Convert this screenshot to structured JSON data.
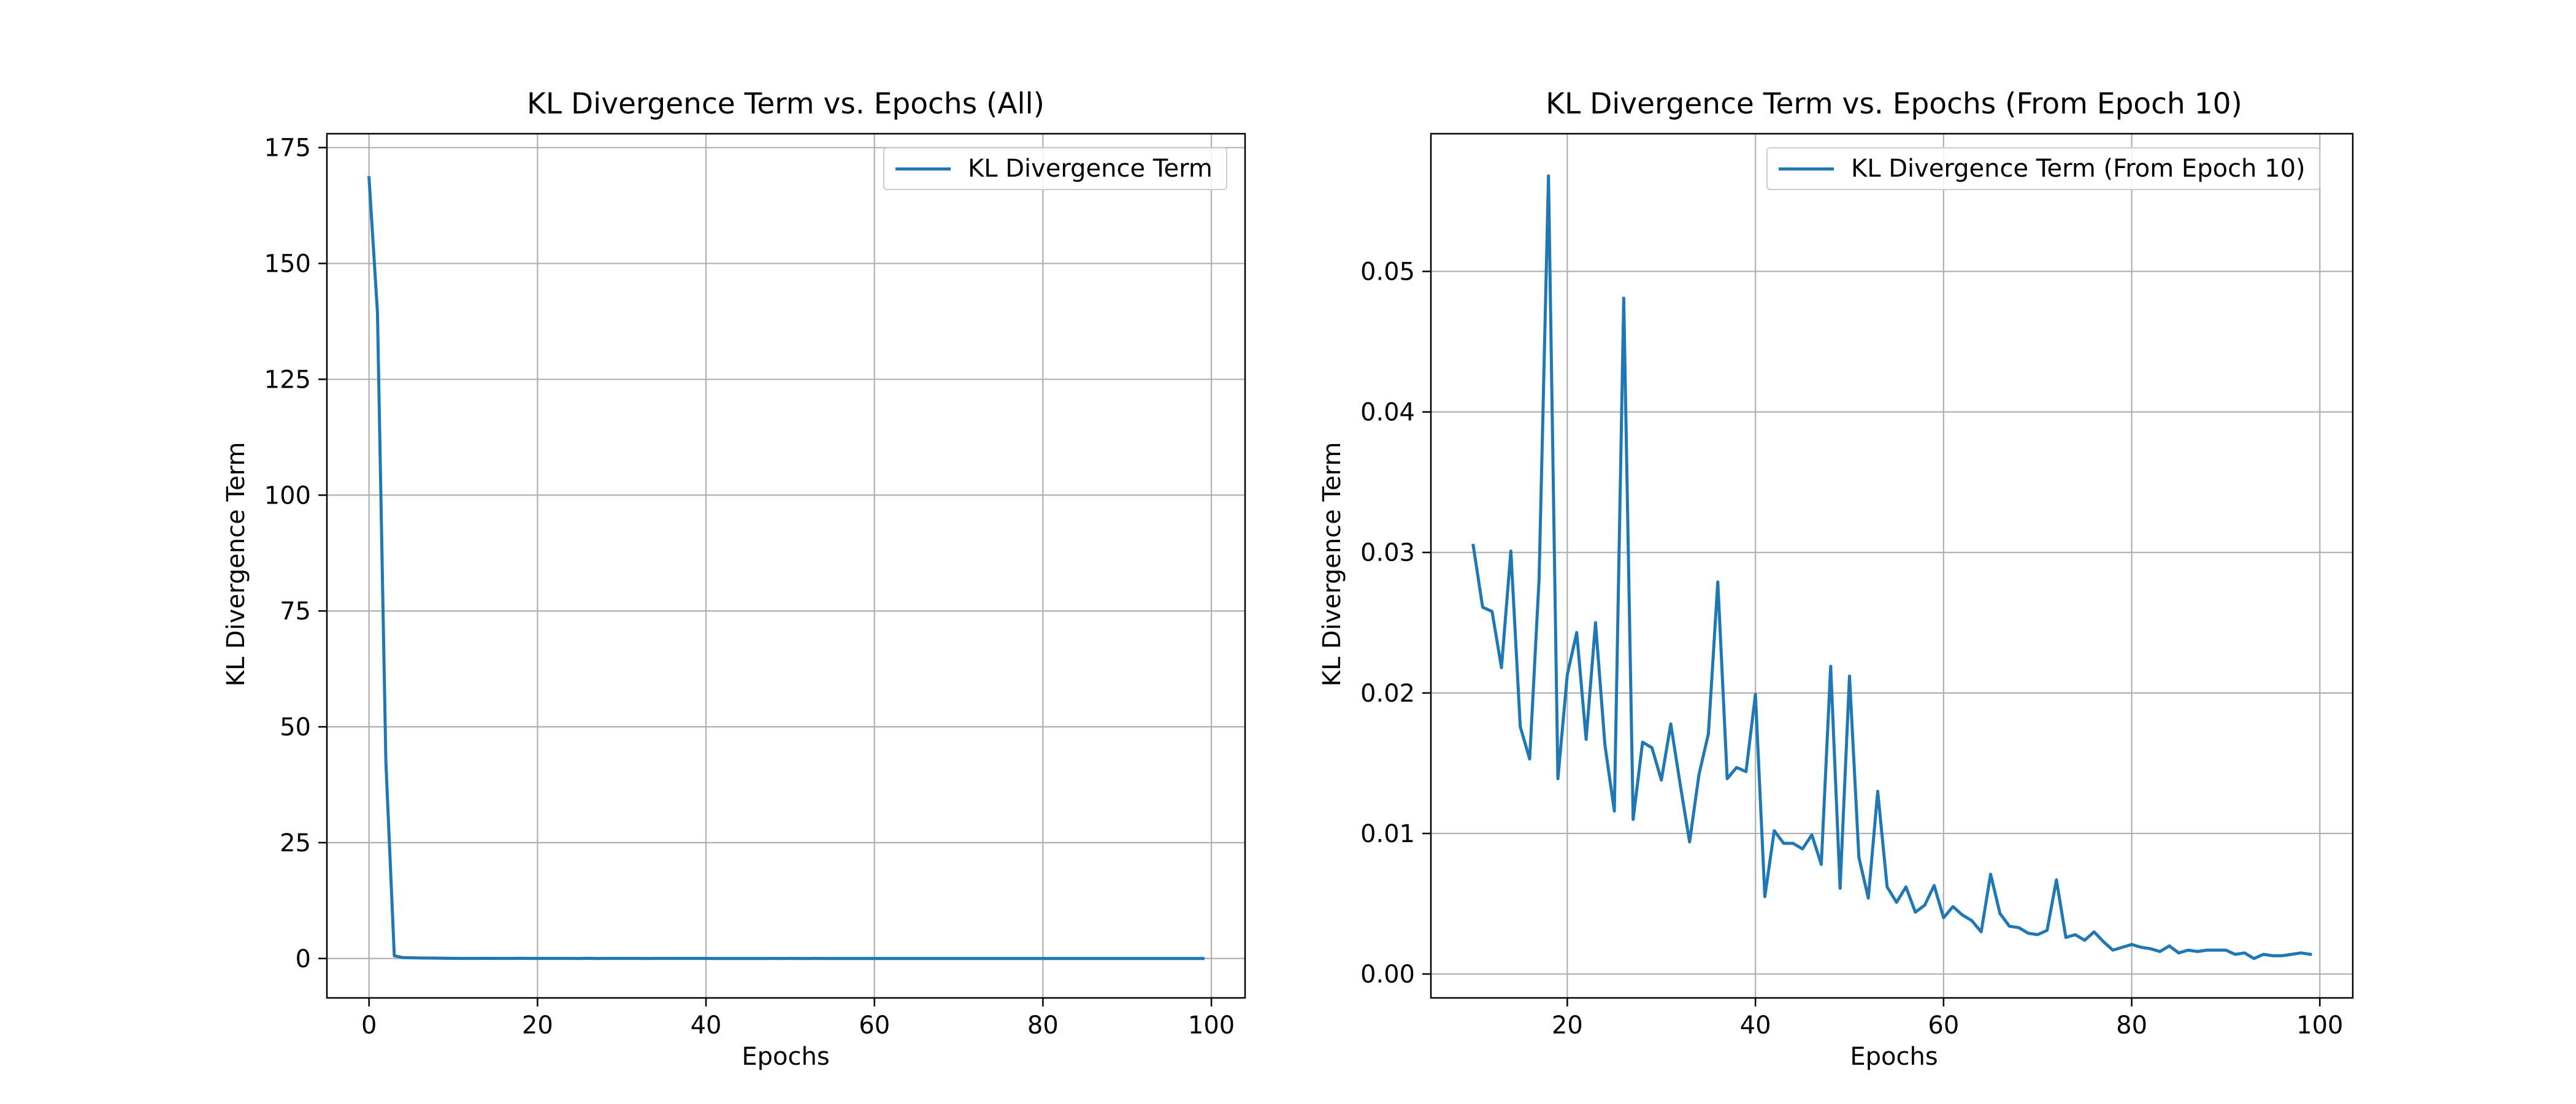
{
  "chart_data": [
    {
      "type": "line",
      "title": "KL Divergence Term vs. Epochs (All)",
      "xlabel": "Epochs",
      "ylabel": "KL Divergence Term",
      "xlim": [
        -5,
        104
      ],
      "ylim": [
        -8.5,
        178
      ],
      "xticks": [
        0,
        20,
        40,
        60,
        80,
        100
      ],
      "yticks": [
        0,
        25,
        50,
        75,
        100,
        125,
        150,
        175
      ],
      "xtick_labels": [
        "0",
        "20",
        "40",
        "60",
        "80",
        "100"
      ],
      "ytick_labels": [
        "0",
        "25",
        "50",
        "75",
        "100",
        "125",
        "150",
        "175"
      ],
      "grid": true,
      "legend_position": "top-right",
      "series": [
        {
          "name": "KL Divergence Term",
          "color": "#1f77b4",
          "x": [
            0,
            1,
            2,
            3,
            4,
            5,
            6,
            7,
            8,
            9,
            10,
            11,
            12,
            13,
            14,
            15,
            16,
            17,
            18,
            19,
            20,
            21,
            22,
            23,
            24,
            25,
            26,
            27,
            28,
            29,
            30,
            31,
            32,
            33,
            34,
            35,
            36,
            37,
            38,
            39,
            40,
            41,
            42,
            43,
            44,
            45,
            46,
            47,
            48,
            49,
            50,
            51,
            52,
            53,
            54,
            55,
            56,
            57,
            58,
            59,
            60,
            61,
            62,
            63,
            64,
            65,
            66,
            67,
            68,
            69,
            70,
            71,
            72,
            73,
            74,
            75,
            76,
            77,
            78,
            79,
            80,
            81,
            82,
            83,
            84,
            85,
            86,
            87,
            88,
            89,
            90,
            91,
            92,
            93,
            94,
            95,
            96,
            97,
            98,
            99
          ],
          "values": [
            168.5,
            139.5,
            42.5,
            0.6,
            0.2,
            0.15,
            0.12,
            0.1,
            0.08,
            0.06,
            0.0305,
            0.0261,
            0.0258,
            0.0218,
            0.0301,
            0.0176,
            0.0153,
            0.0281,
            0.0568,
            0.0139,
            0.0213,
            0.0243,
            0.0167,
            0.025,
            0.0163,
            0.0116,
            0.0481,
            0.011,
            0.0165,
            0.0161,
            0.0138,
            0.0178,
            0.0135,
            0.0094,
            0.0142,
            0.0171,
            0.0279,
            0.0139,
            0.0147,
            0.0144,
            0.0199,
            0.0055,
            0.0102,
            0.0093,
            0.0093,
            0.0089,
            0.0099,
            0.0078,
            0.0219,
            0.0061,
            0.0212,
            0.0083,
            0.0054,
            0.013,
            0.0062,
            0.0051,
            0.0062,
            0.0044,
            0.0049,
            0.0063,
            0.004,
            0.0048,
            0.0042,
            0.0038,
            0.003,
            0.0071,
            0.0043,
            0.0034,
            0.0033,
            0.0029,
            0.0028,
            0.0031,
            0.0067,
            0.0026,
            0.0028,
            0.0024,
            0.003,
            0.0023,
            0.0017,
            0.0019,
            0.0021,
            0.0019,
            0.0018,
            0.0016,
            0.002,
            0.0015,
            0.0017,
            0.0016,
            0.0017,
            0.0017,
            0.0017,
            0.0014,
            0.0015,
            0.0011,
            0.0014,
            0.0013,
            0.0013,
            0.0014,
            0.0015,
            0.0014
          ]
        }
      ]
    },
    {
      "type": "line",
      "title": "KL Divergence Term vs. Epochs (From Epoch 10)",
      "xlabel": "Epochs",
      "ylabel": "KL Divergence Term",
      "xlim": [
        5.5,
        103.5
      ],
      "ylim": [
        -0.0017,
        0.0598
      ],
      "xticks": [
        20,
        40,
        60,
        80,
        100
      ],
      "yticks": [
        0.0,
        0.01,
        0.02,
        0.03,
        0.04,
        0.05
      ],
      "xtick_labels": [
        "20",
        "40",
        "60",
        "80",
        "100"
      ],
      "ytick_labels": [
        "0.00",
        "0.01",
        "0.02",
        "0.03",
        "0.04",
        "0.05"
      ],
      "grid": true,
      "legend_position": "top-right",
      "series": [
        {
          "name": "KL Divergence Term (From Epoch 10)",
          "color": "#1f77b4",
          "x": [
            10,
            11,
            12,
            13,
            14,
            15,
            16,
            17,
            18,
            19,
            20,
            21,
            22,
            23,
            24,
            25,
            26,
            27,
            28,
            29,
            30,
            31,
            32,
            33,
            34,
            35,
            36,
            37,
            38,
            39,
            40,
            41,
            42,
            43,
            44,
            45,
            46,
            47,
            48,
            49,
            50,
            51,
            52,
            53,
            54,
            55,
            56,
            57,
            58,
            59,
            60,
            61,
            62,
            63,
            64,
            65,
            66,
            67,
            68,
            69,
            70,
            71,
            72,
            73,
            74,
            75,
            76,
            77,
            78,
            79,
            80,
            81,
            82,
            83,
            84,
            85,
            86,
            87,
            88,
            89,
            90,
            91,
            92,
            93,
            94,
            95,
            96,
            97,
            98,
            99
          ],
          "values": [
            0.0305,
            0.0261,
            0.0258,
            0.0218,
            0.0301,
            0.0176,
            0.0153,
            0.0281,
            0.0568,
            0.0139,
            0.0213,
            0.0243,
            0.0167,
            0.025,
            0.0163,
            0.0116,
            0.0481,
            0.011,
            0.0165,
            0.0161,
            0.0138,
            0.0178,
            0.0135,
            0.0094,
            0.0142,
            0.0171,
            0.0279,
            0.0139,
            0.0147,
            0.0144,
            0.0199,
            0.0055,
            0.0102,
            0.0093,
            0.0093,
            0.0089,
            0.0099,
            0.0078,
            0.0219,
            0.0061,
            0.0212,
            0.0083,
            0.0054,
            0.013,
            0.0062,
            0.0051,
            0.0062,
            0.0044,
            0.0049,
            0.0063,
            0.004,
            0.0048,
            0.0042,
            0.0038,
            0.003,
            0.0071,
            0.0043,
            0.0034,
            0.0033,
            0.0029,
            0.0028,
            0.0031,
            0.0067,
            0.0026,
            0.0028,
            0.0024,
            0.003,
            0.0023,
            0.0017,
            0.0019,
            0.0021,
            0.0019,
            0.0018,
            0.0016,
            0.002,
            0.0015,
            0.0017,
            0.0016,
            0.0017,
            0.0017,
            0.0017,
            0.0014,
            0.0015,
            0.0011,
            0.0014,
            0.0013,
            0.0013,
            0.0014,
            0.0015,
            0.0014
          ]
        }
      ]
    }
  ]
}
